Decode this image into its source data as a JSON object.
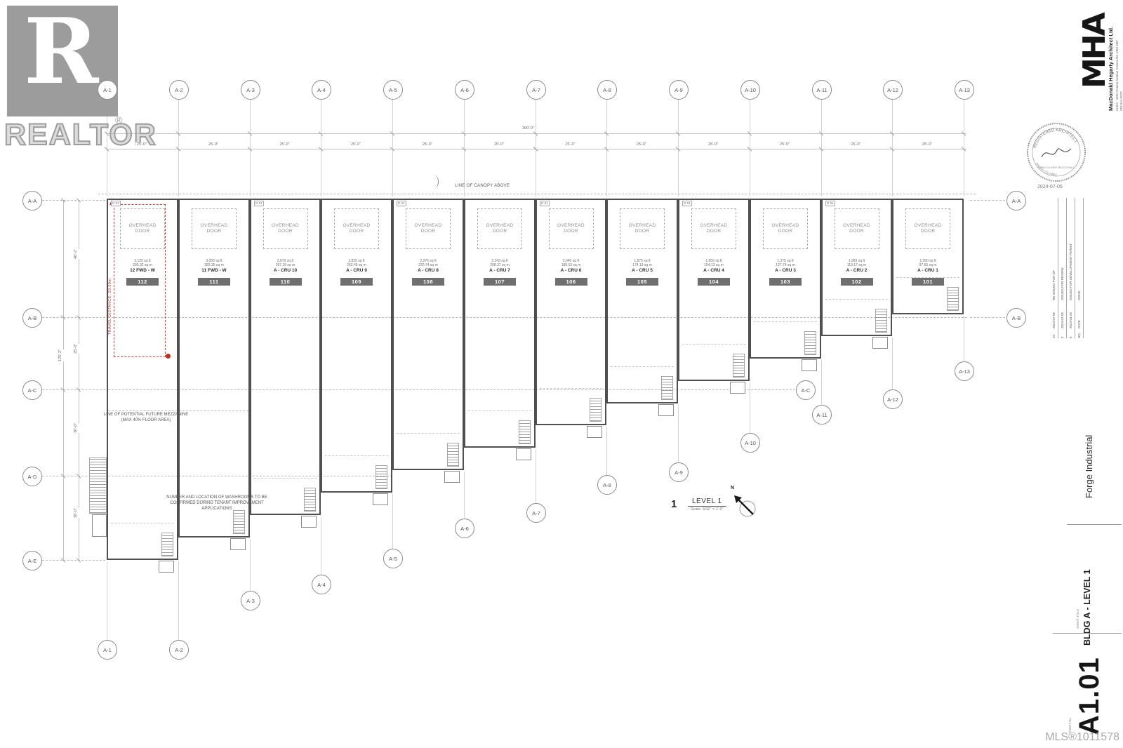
{
  "watermark": {
    "logo_letter": "R",
    "brand": "REALTOR",
    "reg": "®"
  },
  "plan": {
    "grid_cols": [
      "A-1",
      "A-2",
      "A-3",
      "A-4",
      "A-5",
      "A-6",
      "A-7",
      "A-8",
      "A-9",
      "A-10",
      "A-11",
      "A-12",
      "A-13"
    ],
    "grid_rows": [
      "A-A",
      "A-B",
      "A-C",
      "A-D",
      "A-E"
    ],
    "dim_overall_width": "300'-0\"",
    "dim_bay": "25'-0\"",
    "dim_overall_height": "125'-2\"",
    "dim_row_segments": [
      "40'-2\"",
      "25'-0\"",
      "30'-0\"",
      "30'-0\""
    ],
    "canopy_note": "LINE OF CANOPY ABOVE",
    "travel_distance_note": "TRAVEL DISTANCE: 23.50m",
    "mezzanine_note": "LINE OF POTENTIAL FUTURE MEZZANINE (MAX 40% FLOOR AREA)",
    "washroom_note": "NUMBER AND LOCATION OF WASHROOMS TO BE CONFIRMED DURING TENANT IMPROVEMENT APPLICATIONS",
    "overhead_door_label": "OVERHEAD DOOR",
    "door_tag": "D-01",
    "view_title": {
      "number": "1",
      "name": "LEVEL 1",
      "scale": "Scale:  3/32\" = 1'-0\"",
      "north_label": "N"
    },
    "units": [
      {
        "sqft": "3,125 sq ft",
        "sqm": "290.32 sq m",
        "name": "12 FWD - W",
        "number": "112"
      },
      {
        "sqft": "3,050 sq ft",
        "sqm": "283.35 sq m",
        "name": "11 FWD - W",
        "number": "111"
      },
      {
        "sqft": "2,876 sq ft",
        "sqm": "267.18 sq m",
        "name": "A - CRU 10",
        "number": "110"
      },
      {
        "sqft": "2,825 sq ft",
        "sqm": "262.45 sq m",
        "name": "A - CRU 9",
        "number": "109"
      },
      {
        "sqft": "2,376 sq ft",
        "sqm": "220.74 sq m",
        "name": "A - CRU 8",
        "number": "108"
      },
      {
        "sqft": "2,243 sq ft",
        "sqm": "208.37 sq m",
        "name": "A - CRU 7",
        "number": "107"
      },
      {
        "sqft": "2,040 sq ft",
        "sqm": "189.53 sq m",
        "name": "A - CRU 6",
        "number": "106"
      },
      {
        "sqft": "1,875 sq ft",
        "sqm": "174.19 sq m",
        "name": "A - CRU 5",
        "number": "105"
      },
      {
        "sqft": "1,659 sq ft",
        "sqm": "154.13 sq m",
        "name": "A - CRU 4",
        "number": "104"
      },
      {
        "sqft": "1,375 sq ft",
        "sqm": "127.74 sq m",
        "name": "A - CRU 3",
        "number": "103"
      },
      {
        "sqft": "1,283 sq ft",
        "sqm": "119.17 sq m",
        "name": "A - CRU 2",
        "number": "102"
      },
      {
        "sqft": "1,050 sq ft",
        "sqm": "97.55 sq m",
        "name": "A - CRU 1",
        "number": "101"
      }
    ]
  },
  "title_block": {
    "firm_logo": "MHA",
    "firm_name": "MacDonald Hegarty Architect Ltd.",
    "firm_address": "Unit 6 - 1822 Comox Avenue Comox BC V9M 3M7",
    "firm_phone": "250.941.0223",
    "seal": {
      "arc_top": "REGISTERED ARCHITECT",
      "arc_name": "MARIS OLIVER MACDONALD",
      "arc_bottom": "BRITISH COLUMBIA",
      "date": "2024-07-05"
    },
    "revision_header": {
      "no": "NO.",
      "date": "DATE",
      "issue": "ISSUE"
    },
    "revisions": [
      {
        "no": "10",
        "date": "2024-07-05",
        "issue": "RE-ISSUED FOR DP"
      },
      {
        "no": "9",
        "date": "2024-07-05",
        "issue": "ISSUED FOR REVIEW"
      },
      {
        "no": "8",
        "date": "2024-04-29",
        "issue": "ISSUED FOR DEVELOPMENT PERMIT"
      }
    ],
    "project_name": "Forge Industrial",
    "sheet_title_label": "SHEET TITLE",
    "sheet_title": "BLDG A - LEVEL 1",
    "sheet_number_label": "SHEET No.",
    "sheet_number": "A1.01",
    "mls_number": "MLS®1011578"
  }
}
